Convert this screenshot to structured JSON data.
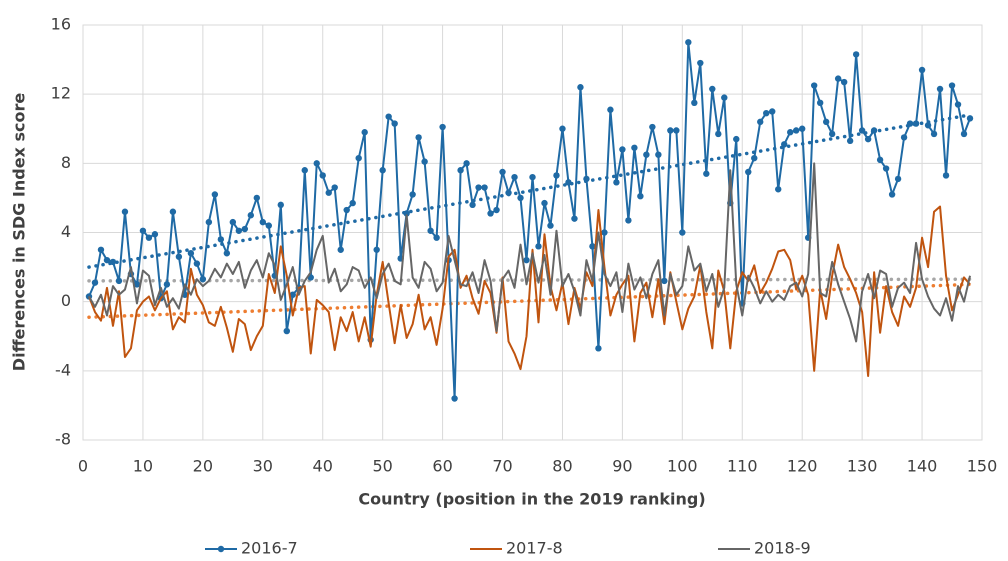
{
  "chart_data": {
    "type": "line",
    "xlabel": "Country (position in the 2019 ranking)",
    "ylabel": "Differences in SDG Index score",
    "xlim": [
      0,
      150
    ],
    "xticks": [
      0,
      10,
      20,
      30,
      40,
      50,
      60,
      70,
      80,
      90,
      100,
      110,
      120,
      130,
      140,
      150
    ],
    "ylim": [
      -8,
      16
    ],
    "yticks": [
      -8,
      -4,
      0,
      4,
      8,
      12,
      16
    ],
    "grid": true,
    "legend": "bottom",
    "x": [
      1,
      2,
      3,
      4,
      5,
      6,
      7,
      8,
      9,
      10,
      11,
      12,
      13,
      14,
      15,
      16,
      17,
      18,
      19,
      20,
      21,
      22,
      23,
      24,
      25,
      26,
      27,
      28,
      29,
      30,
      31,
      32,
      33,
      34,
      35,
      36,
      37,
      38,
      39,
      40,
      41,
      42,
      43,
      44,
      45,
      46,
      47,
      48,
      49,
      50,
      51,
      52,
      53,
      54,
      55,
      56,
      57,
      58,
      59,
      60,
      61,
      62,
      63,
      64,
      65,
      66,
      67,
      68,
      69,
      70,
      71,
      72,
      73,
      74,
      75,
      76,
      77,
      78,
      79,
      80,
      81,
      82,
      83,
      84,
      85,
      86,
      87,
      88,
      89,
      90,
      91,
      92,
      93,
      94,
      95,
      96,
      97,
      98,
      99,
      100,
      101,
      102,
      103,
      104,
      105,
      106,
      107,
      108,
      109,
      110,
      111,
      112,
      113,
      114,
      115,
      116,
      117,
      118,
      119,
      120,
      121,
      122,
      123,
      124,
      125,
      126,
      127,
      128,
      129,
      130,
      131,
      132,
      133,
      134,
      135,
      136,
      137,
      138,
      139,
      140,
      141,
      142,
      143,
      144,
      145,
      146,
      147,
      148
    ],
    "series": [
      {
        "name": "2016-7",
        "color": "#1f6aa5",
        "marker": true,
        "trend": [
          2.0,
          10.8
        ],
        "trend_color": "#1f6aa5",
        "values": [
          0.3,
          1.1,
          3.0,
          2.4,
          2.3,
          1.2,
          5.2,
          1.6,
          1.0,
          4.1,
          3.7,
          3.9,
          0.2,
          1.0,
          5.2,
          2.6,
          0.4,
          2.8,
          2.2,
          1.3,
          4.6,
          6.2,
          3.6,
          2.8,
          4.6,
          4.1,
          4.2,
          5.0,
          6.0,
          4.6,
          4.4,
          1.5,
          5.6,
          -1.7,
          0.4,
          0.8,
          7.6,
          1.4,
          8.0,
          7.3,
          6.3,
          6.6,
          3.0,
          5.3,
          5.7,
          8.3,
          9.8,
          -2.2,
          3.0,
          7.6,
          10.7,
          10.3,
          2.5,
          5.1,
          6.2,
          9.5,
          8.1,
          4.1,
          3.7,
          10.1,
          2.4,
          -5.6,
          7.6,
          8.0,
          5.6,
          6.6,
          6.6,
          5.1,
          5.3,
          7.5,
          6.3,
          7.2,
          6.0,
          2.4,
          7.2,
          3.2,
          5.7,
          4.4,
          7.3,
          10.0,
          6.9,
          4.8,
          12.4,
          7.1,
          3.2,
          -2.7,
          4.0,
          11.1,
          6.9,
          8.8,
          4.7,
          8.9,
          6.1,
          8.5,
          10.1,
          8.5,
          1.2,
          9.9,
          9.9,
          4.0,
          15.0,
          11.5,
          13.8,
          7.4,
          12.3,
          9.7,
          11.8,
          5.7,
          9.4,
          -0.1,
          7.5,
          8.3,
          10.4,
          10.9,
          11.0,
          6.5,
          9.1,
          9.8,
          9.9,
          10.0,
          3.7,
          12.5,
          11.5,
          10.4,
          9.7,
          12.9,
          12.7,
          9.3,
          14.3,
          9.9,
          9.4,
          9.9,
          8.2,
          7.7,
          6.2,
          7.1,
          9.5,
          10.3,
          10.3,
          13.4,
          10.2,
          9.7,
          12.3,
          7.3,
          12.5,
          11.4,
          9.7,
          10.6
        ]
      },
      {
        "name": "2017-8",
        "color": "#c0540f",
        "marker": false,
        "trend": [
          -0.9,
          1.0
        ],
        "trend_color": "#ed7d31",
        "values": [
          0.3,
          -0.6,
          -1.1,
          0.8,
          -1.4,
          0.6,
          -3.2,
          -2.7,
          -0.5,
          0.0,
          0.3,
          -0.5,
          0.2,
          0.6,
          -1.6,
          -0.9,
          -1.2,
          1.9,
          0.4,
          -0.2,
          -1.2,
          -1.4,
          -0.3,
          -1.5,
          -2.9,
          -1.0,
          -1.3,
          -2.8,
          -2.0,
          -1.4,
          1.6,
          0.5,
          3.2,
          1.5,
          -0.8,
          0.8,
          0.9,
          -3.0,
          0.1,
          -0.2,
          -0.6,
          -2.8,
          -0.9,
          -1.7,
          -0.6,
          -2.3,
          -0.9,
          -2.6,
          0.4,
          2.3,
          -0.1,
          -2.4,
          -0.2,
          -2.1,
          -1.3,
          0.4,
          -1.6,
          -0.9,
          -2.5,
          -0.4,
          2.6,
          3.0,
          0.8,
          1.5,
          0.2,
          -0.7,
          1.2,
          0.5,
          -1.8,
          1.4,
          -2.3,
          -3.0,
          -3.9,
          -2.0,
          3.0,
          -1.2,
          3.9,
          0.9,
          -0.5,
          1.1,
          -1.3,
          0.8,
          -0.4,
          1.7,
          0.9,
          5.3,
          2.0,
          -0.8,
          0.4,
          1.0,
          1.5,
          -2.3,
          0.5,
          1.1,
          -0.9,
          1.3,
          -1.3,
          1.7,
          0.0,
          -1.6,
          -0.4,
          0.3,
          2.1,
          -0.6,
          -2.7,
          1.8,
          0.6,
          -2.7,
          0.6,
          1.7,
          1.2,
          2.1,
          0.5,
          1.1,
          1.9,
          2.9,
          3.0,
          2.4,
          0.7,
          1.5,
          0.4,
          -4.0,
          0.7,
          -1.0,
          1.5,
          3.3,
          2.0,
          1.3,
          0.5,
          -0.6,
          -4.3,
          1.7,
          -1.8,
          0.9,
          -0.6,
          -1.4,
          0.3,
          -0.3,
          0.8,
          3.7,
          2.0,
          5.2,
          5.5,
          1.5,
          -0.5,
          0.4,
          1.4,
          1.0
        ]
      },
      {
        "name": "2018-9",
        "color": "#666666",
        "marker": false,
        "trend": [
          1.2,
          1.3
        ],
        "trend_color": "#a6a6a6",
        "values": [
          0.3,
          -0.3,
          0.4,
          -0.8,
          0.9,
          0.4,
          0.7,
          2.0,
          -0.1,
          1.8,
          1.5,
          -0.2,
          0.8,
          -0.3,
          0.2,
          -0.4,
          1.0,
          0.4,
          1.3,
          0.9,
          1.2,
          1.9,
          1.4,
          2.2,
          1.6,
          2.3,
          0.8,
          1.8,
          2.4,
          1.4,
          2.8,
          2.1,
          0.1,
          1.0,
          2.0,
          0.4,
          1.2,
          1.7,
          3.0,
          3.8,
          1.1,
          1.9,
          0.6,
          1.0,
          2.0,
          1.8,
          0.8,
          1.4,
          0.2,
          1.6,
          2.2,
          1.2,
          1.0,
          5.0,
          1.4,
          0.8,
          2.3,
          1.9,
          0.6,
          1.1,
          3.8,
          2.4,
          1.0,
          0.9,
          1.7,
          0.5,
          2.4,
          1.2,
          -1.7,
          1.3,
          1.8,
          0.8,
          3.3,
          1.0,
          2.8,
          1.1,
          2.7,
          0.4,
          4.1,
          0.9,
          1.6,
          0.6,
          -0.8,
          2.4,
          1.2,
          4.0,
          1.6,
          0.9,
          1.7,
          -0.6,
          2.2,
          0.7,
          1.4,
          0.2,
          1.6,
          2.4,
          -0.8,
          1.6,
          0.4,
          0.9,
          3.2,
          1.8,
          2.2,
          0.6,
          1.6,
          -0.3,
          0.8,
          7.6,
          1.0,
          -0.8,
          1.5,
          0.8,
          -0.1,
          0.6,
          0.0,
          0.4,
          0.1,
          0.9,
          1.1,
          0.3,
          1.6,
          8.0,
          0.5,
          0.3,
          2.3,
          1.0,
          0.0,
          -1.0,
          -2.3,
          0.6,
          1.6,
          0.2,
          1.8,
          1.6,
          -0.3,
          0.8,
          1.1,
          0.5,
          3.4,
          1.3,
          0.3,
          -0.4,
          -0.8,
          0.2,
          -1.1,
          0.9,
          0.0,
          1.5
        ]
      }
    ]
  }
}
